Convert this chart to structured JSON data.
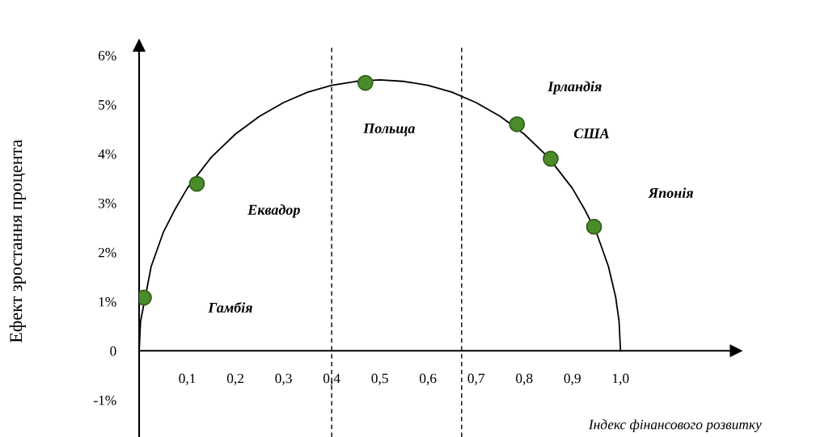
{
  "chart_data": {
    "type": "scatter",
    "xlabel": "Індекс фінансового розвитку",
    "ylabel": "Ефект зростання процента",
    "series": [
      {
        "type": "line",
        "color": "#000000",
        "marker": "none",
        "x": [
          0,
          0.003,
          0.025,
          0.05,
          0.075,
          0.1,
          0.15,
          0.2,
          0.25,
          0.3,
          0.35,
          0.4,
          0.45,
          0.5,
          0.55,
          0.6,
          0.65,
          0.7,
          0.75,
          0.8,
          0.85,
          0.9,
          0.925,
          0.95,
          0.975,
          0.99,
          0.997,
          1.0
        ],
        "values": [
          0,
          0.6,
          1.71,
          2.4,
          2.88,
          3.3,
          3.93,
          4.4,
          4.76,
          5.04,
          5.25,
          5.39,
          5.47,
          5.5,
          5.47,
          5.39,
          5.25,
          5.04,
          4.76,
          4.4,
          3.93,
          3.3,
          2.88,
          2.4,
          1.71,
          1.09,
          0.6,
          0
        ]
      },
      {
        "color": "#4a8c2a",
        "marker": "circle",
        "x": [
          0.01,
          0.12,
          0.47,
          0.785,
          0.855,
          0.945
        ],
        "values": [
          1.08,
          3.39,
          5.44,
          4.6,
          3.9,
          2.52
        ]
      }
    ],
    "xlim": [
      0,
      1.24
    ],
    "ylim": [
      -1.75,
      6.2
    ],
    "xticks": [
      {
        "value": 0.1,
        "label": "0,1"
      },
      {
        "value": 0.2,
        "label": "0,2"
      },
      {
        "value": 0.3,
        "label": "0,3"
      },
      {
        "value": 0.4,
        "label": "0,4"
      },
      {
        "value": 0.5,
        "label": "0,5"
      },
      {
        "value": 0.6,
        "label": "0,6"
      },
      {
        "value": 0.7,
        "label": "0,7"
      },
      {
        "value": 0.8,
        "label": "0,8"
      },
      {
        "value": 0.9,
        "label": "0,9"
      },
      {
        "value": 1.0,
        "label": "1,0"
      }
    ],
    "yticks": [
      {
        "value": -1,
        "label": "-1%"
      },
      0,
      {
        "value": 1,
        "label": "1%"
      },
      {
        "value": 2,
        "label": "2%"
      },
      {
        "value": 3,
        "label": "3%"
      },
      {
        "value": 4,
        "label": "4%"
      },
      {
        "value": 5,
        "label": "5%"
      },
      {
        "value": 6,
        "label": "6%"
      }
    ],
    "ref_lines": [
      {
        "axis": "x",
        "value": 0.4,
        "color": "#000000",
        "line_style": "dashed"
      },
      {
        "axis": "x",
        "value": 0.67,
        "color": "#000000",
        "line_style": "dashed"
      }
    ],
    "annotations": [
      "Гамбія",
      "Еквадор",
      "Польща",
      "Ірландія",
      "США",
      "Японія"
    ],
    "grid": false,
    "legend": false
  }
}
